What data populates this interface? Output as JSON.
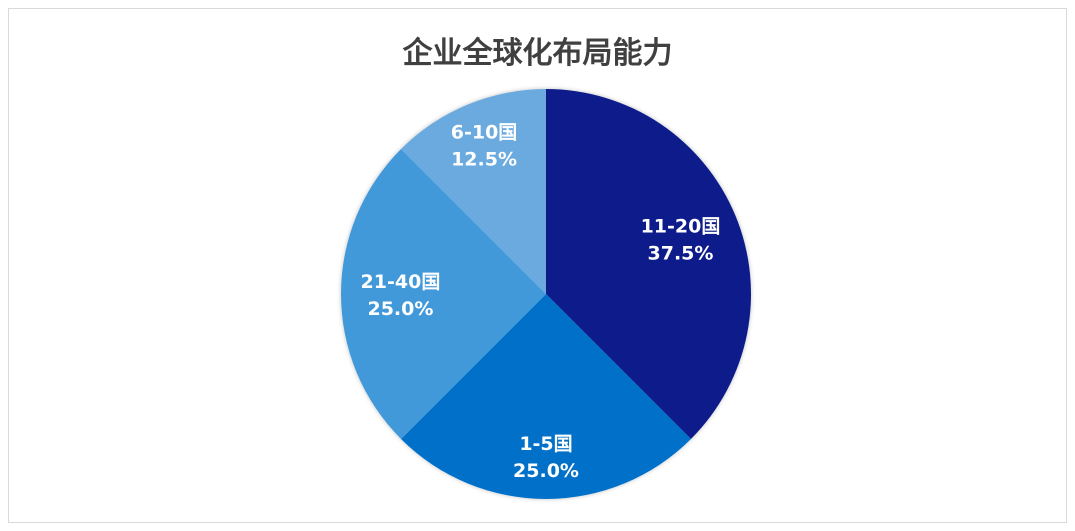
{
  "chart_data": {
    "type": "pie",
    "title": "企业全球化布局能力",
    "start_angle": "top",
    "direction": "clockwise",
    "slices": [
      {
        "label": "11-20国",
        "value": 37.5,
        "display": "37.5%",
        "color": "#101E8A"
      },
      {
        "label": "1-5国",
        "value": 25.0,
        "display": "25.0%",
        "color": "#0070C9"
      },
      {
        "label": "21-40国",
        "value": 25.0,
        "display": "25.0%",
        "color": "#4399DA"
      },
      {
        "label": "6-10国",
        "value": 12.5,
        "display": "12.5%",
        "color": "#6AAADF"
      }
    ],
    "legend": "none"
  }
}
